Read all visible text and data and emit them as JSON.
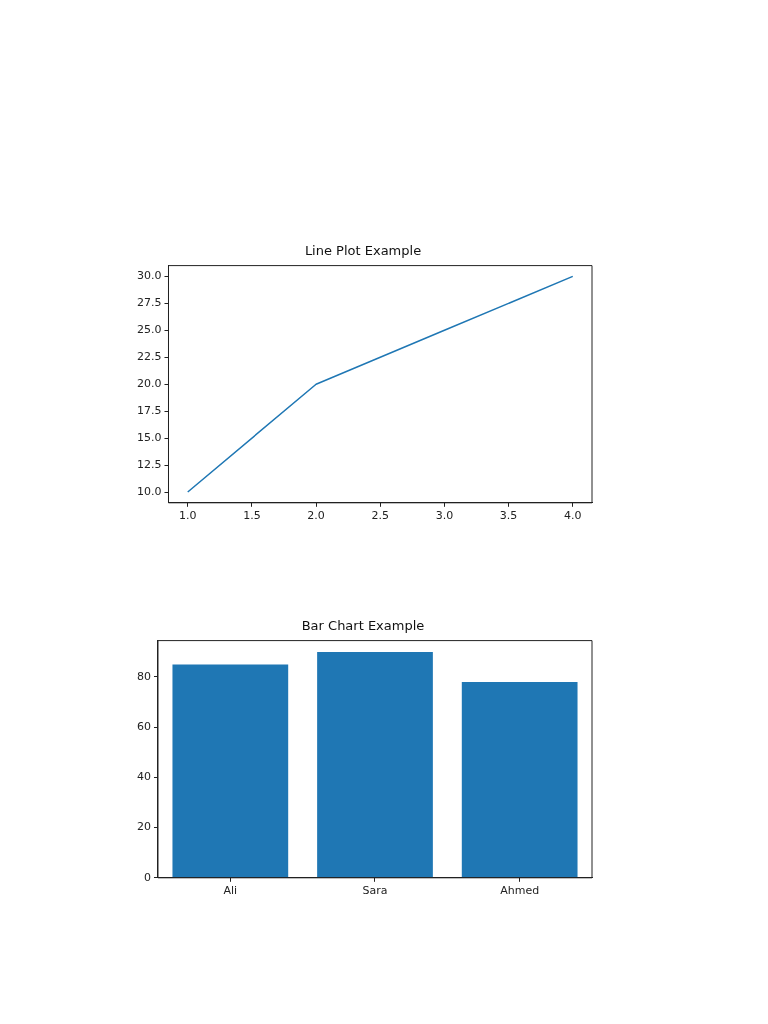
{
  "chart_data": [
    {
      "type": "line",
      "title": "Line Plot Example",
      "x": [
        1,
        2,
        3,
        4
      ],
      "series": [
        {
          "color": "#1f77b4",
          "values": [
            10,
            20,
            25,
            30
          ]
        }
      ],
      "xlim": [
        0.85,
        4.15
      ],
      "xticks": [
        {
          "value": 1,
          "label": "1.0"
        },
        {
          "value": 1.5,
          "label": "1.5"
        },
        {
          "value": 2,
          "label": "2.0"
        },
        {
          "value": 2.5,
          "label": "2.5"
        },
        {
          "value": 3,
          "label": "3.0"
        },
        {
          "value": 3.5,
          "label": "3.5"
        },
        {
          "value": 4,
          "label": "4.0"
        }
      ],
      "ylim": [
        9,
        31
      ],
      "yticks": [
        {
          "value": 10,
          "label": "10.0"
        },
        {
          "value": 12.5,
          "label": "12.5"
        },
        {
          "value": 15,
          "label": "15.0"
        },
        {
          "value": 17.5,
          "label": "17.5"
        },
        {
          "value": 20,
          "label": "20.0"
        },
        {
          "value": 22.5,
          "label": "22.5"
        },
        {
          "value": 25,
          "label": "25.0"
        },
        {
          "value": 27.5,
          "label": "27.5"
        },
        {
          "value": 30,
          "label": "30.0"
        }
      ],
      "marker": "none"
    },
    {
      "type": "bar",
      "title": "Bar Chart Example",
      "categories": [
        "Ali",
        "Sara",
        "Ahmed"
      ],
      "series": [
        {
          "color": "#1f77b4",
          "values": [
            85,
            90,
            78
          ]
        }
      ],
      "ylim": [
        0,
        94.5
      ],
      "yticks": [
        0,
        20,
        40,
        60,
        80
      ]
    }
  ]
}
